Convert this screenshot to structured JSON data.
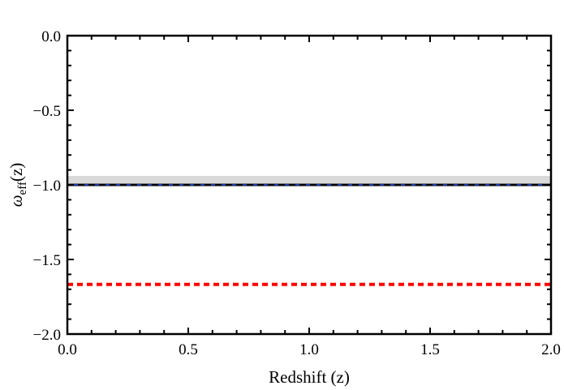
{
  "chart_data": {
    "type": "line",
    "title": "",
    "xlabel": "Redshift (z)",
    "ylabel": {
      "base": "ω",
      "subscript": "eff",
      "suffix": "(z)"
    },
    "xlim": [
      0.0,
      2.0
    ],
    "ylim": [
      -2.0,
      0.0
    ],
    "x_ticks": [
      0.0,
      0.5,
      1.0,
      1.5,
      2.0
    ],
    "x_tick_labels": [
      "0.0",
      "0.5",
      "1.0",
      "1.5",
      "2.0"
    ],
    "y_ticks": [
      0.0,
      -0.5,
      -1.0,
      -1.5,
      -2.0
    ],
    "y_tick_labels": [
      "0.0",
      "−0.5",
      "−1.0",
      "−1.5",
      "−2.0"
    ],
    "grid": false,
    "band": {
      "y_range": [
        -0.99,
        -0.94
      ],
      "color": "#d9d9d9"
    },
    "series": [
      {
        "x": [
          0.0,
          2.0
        ],
        "y": [
          -1.0,
          -1.0
        ],
        "color": "#000000",
        "style": "solid",
        "width": 3
      },
      {
        "x": [
          0.0,
          2.0
        ],
        "y": [
          -1.0,
          -1.0
        ],
        "color": "#1a3aa8",
        "style": "solid",
        "width": 2
      },
      {
        "x": [
          0.0,
          2.0
        ],
        "y": [
          -1.0,
          -1.0
        ],
        "color": "#000000",
        "style": "dashed",
        "width": 2
      },
      {
        "x": [
          0.0,
          2.0
        ],
        "y": [
          -1.667,
          -1.667
        ],
        "color": "#ff0000",
        "style": "dotted",
        "width": 4
      }
    ]
  }
}
